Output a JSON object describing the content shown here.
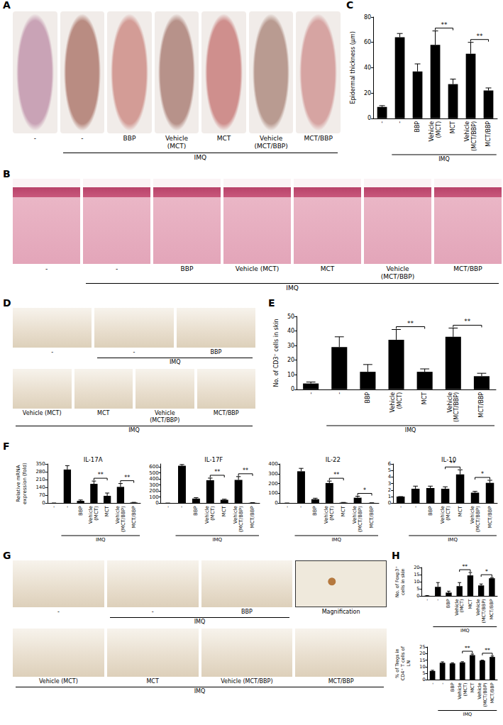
{
  "chart_data": [
    {
      "panel": "C",
      "type": "bar",
      "y_label": "Epidermal thickness (μm)",
      "categories": [
        "-",
        "-",
        "BBP",
        "Vehicle (MCT)",
        "MCT",
        "Vehicle (MCT/BBP)",
        "MCT/BBP"
      ],
      "values": [
        9,
        64,
        37,
        58,
        27,
        51,
        22
      ],
      "errors": [
        1,
        3,
        6,
        11,
        4,
        9,
        2
      ],
      "color": "#000000",
      "ylim": [
        0,
        80
      ],
      "yticks": [
        0,
        20,
        40,
        60,
        80
      ],
      "grid": false,
      "group": {
        "label": "IMQ",
        "start": 1,
        "end": 6
      },
      "significance": [
        {
          "from": 3,
          "to": 4,
          "label": "**"
        },
        {
          "from": 5,
          "to": 6,
          "label": "**"
        }
      ]
    },
    {
      "panel": "E",
      "type": "bar",
      "y_label": "No. of CD3⁺ cells in skin",
      "categories": [
        "-",
        "-",
        "BBP",
        "Vehicle (MCT)",
        "MCT",
        "Vehicle (MCT/BBP)",
        "MCT/BBP"
      ],
      "values": [
        4,
        29,
        12,
        34,
        12,
        36,
        9
      ],
      "errors": [
        1,
        7,
        5,
        7,
        2,
        6,
        2
      ],
      "color": "#000000",
      "ylim": [
        0,
        50
      ],
      "yticks": [
        0,
        10,
        20,
        30,
        40,
        50
      ],
      "grid": false,
      "group": {
        "label": "IMQ",
        "start": 1,
        "end": 6
      },
      "significance": [
        {
          "from": 3,
          "to": 4,
          "label": "**"
        },
        {
          "from": 5,
          "to": 6,
          "label": "**"
        }
      ]
    },
    {
      "panel": "F",
      "type": "bar",
      "title": "IL-17A",
      "y_label": "Relative mRNA expression (fold)",
      "categories": [
        "-",
        "-",
        "BBP",
        "Vehicle (MCT)",
        "MCT",
        "Vehicle (MCT/BBP)",
        "MCT/BBP"
      ],
      "values": [
        1,
        300,
        20,
        172,
        65,
        145,
        5
      ],
      "errors": [
        0,
        35,
        8,
        25,
        25,
        30,
        2
      ],
      "color": "#000000",
      "ylim": [
        0,
        350
      ],
      "yticks": [
        0,
        70,
        140,
        210,
        280,
        350
      ],
      "grid": false,
      "group": {
        "label": "IMQ",
        "start": 1,
        "end": 6
      },
      "significance": [
        {
          "from": 3,
          "to": 4,
          "label": "**"
        },
        {
          "from": 5,
          "to": 6,
          "label": "**"
        }
      ]
    },
    {
      "type": "bar",
      "title": "IL-17F",
      "categories": [
        "-",
        "-",
        "BBP",
        "Vehicle (MCT)",
        "MCT",
        "Vehicle (MCT/BBP)",
        "MCT/BBP"
      ],
      "values": [
        1,
        620,
        75,
        380,
        55,
        385,
        5
      ],
      "errors": [
        0,
        20,
        15,
        35,
        10,
        55,
        2
      ],
      "color": "#000000",
      "ylim": [
        0,
        650
      ],
      "yticks": [
        0,
        100,
        200,
        300,
        400,
        500,
        600
      ],
      "grid": false,
      "group": {
        "label": "IMQ",
        "start": 1,
        "end": 6
      },
      "significance": [
        {
          "from": 3,
          "to": 4,
          "label": "**"
        },
        {
          "from": 5,
          "to": 6,
          "label": "**"
        }
      ]
    },
    {
      "type": "bar",
      "title": "IL-22",
      "categories": [
        "-",
        "-",
        "BBP",
        "Vehicle (MCT)",
        "MCT",
        "Vehicle (MCT/BBP)",
        "MCT/BBP"
      ],
      "values": [
        1,
        325,
        40,
        205,
        5,
        55,
        2
      ],
      "errors": [
        0,
        30,
        10,
        20,
        2,
        15,
        1
      ],
      "color": "#000000",
      "ylim": [
        0,
        400
      ],
      "yticks": [
        0,
        100,
        200,
        300,
        400
      ],
      "grid": false,
      "group": {
        "label": "IMQ",
        "start": 1,
        "end": 6
      },
      "significance": [
        {
          "from": 3,
          "to": 4,
          "label": "**"
        },
        {
          "from": 5,
          "to": 6,
          "label": "*"
        }
      ]
    },
    {
      "type": "bar",
      "title": "IL-10",
      "categories": [
        "-",
        "-",
        "BBP",
        "Vehicle (MCT)",
        "MCT",
        "Vehicle (MCT/BBP)",
        "MCT/BBP"
      ],
      "values": [
        1,
        2.2,
        2.3,
        2.2,
        4.4,
        1.6,
        3.1
      ],
      "errors": [
        0,
        0.4,
        0.3,
        0.3,
        0.7,
        0.2,
        0.4
      ],
      "color": "#000000",
      "ylim": [
        0,
        6
      ],
      "yticks": [
        0,
        1,
        2,
        3,
        4,
        5,
        6
      ],
      "grid": false,
      "group": {
        "label": "IMQ",
        "start": 1,
        "end": 6
      },
      "significance": [
        {
          "from": 3,
          "to": 4,
          "label": "**"
        },
        {
          "from": 5,
          "to": 6,
          "label": "*"
        }
      ]
    },
    {
      "panel": "H",
      "type": "bar",
      "y_label": "No. of Foxp3⁺ cells in skin",
      "categories": [
        "-",
        "-",
        "BBP",
        "Vehicle (MCT)",
        "MCT",
        "Vehicle (MCT/BBP)",
        "MCT/BBP"
      ],
      "values": [
        0.3,
        6.5,
        2.5,
        7,
        14.5,
        7.5,
        12.5
      ],
      "errors": [
        0.1,
        3,
        1,
        2.5,
        2,
        1,
        0.5
      ],
      "color": "#000000",
      "ylim": [
        0,
        20
      ],
      "yticks": [
        0,
        5,
        10,
        15,
        20
      ],
      "grid": false,
      "group": {
        "label": "IMQ",
        "start": 1,
        "end": 6
      },
      "significance": [
        {
          "from": 3,
          "to": 4,
          "label": "**"
        },
        {
          "from": 5,
          "to": 6,
          "label": "*"
        }
      ]
    },
    {
      "type": "bar",
      "y_label": "% of Tregs in CD4⁺ T cells of LN",
      "categories": [
        "-",
        "-",
        "BBP",
        "Vehicle (MCT)",
        "MCT",
        "Vehicle (MCT/BBP)",
        "MCT/BBP"
      ],
      "values": [
        6.8,
        13,
        12.5,
        13.3,
        18.8,
        14.7,
        17.4
      ],
      "errors": [
        0.5,
        0.7,
        0.5,
        0.5,
        0.8,
        0.3,
        0.7
      ],
      "color": "#000000",
      "ylim": [
        0,
        25
      ],
      "yticks": [
        0,
        5,
        10,
        15,
        20,
        25
      ],
      "grid": false,
      "group": {
        "label": "IMQ",
        "start": 1,
        "end": 6
      },
      "significance": [
        {
          "from": 3,
          "to": 4,
          "label": "**"
        },
        {
          "from": 5,
          "to": 6,
          "label": "**"
        }
      ]
    }
  ],
  "image_panels": [
    {
      "panel": "A",
      "rows": [
        {
          "labels": [
            "-",
            "-",
            "BBP",
            "Vehicle (MCT)",
            "MCT",
            "Vehicle (MCT/BBP)",
            "MCT/BBP"
          ],
          "group": {
            "label": "IMQ",
            "start": 1,
            "end": 6
          }
        }
      ]
    },
    {
      "panel": "B",
      "rows": [
        {
          "labels": [
            "-",
            "-",
            "BBP",
            "Vehicle (MCT)",
            "MCT",
            "Vehicle (MCT/BBP)",
            "MCT/BBP"
          ],
          "group": {
            "label": "IMQ",
            "start": 1,
            "end": 6
          }
        }
      ]
    },
    {
      "panel": "D",
      "rows": [
        {
          "labels": [
            "-",
            "-",
            "BBP"
          ],
          "group": {
            "label": "IMQ",
            "start": 1,
            "end": 2
          }
        },
        {
          "labels": [
            "Vehicle (MCT)",
            "MCT",
            "Vehicle (MCT/BBP)",
            "MCT/BBP"
          ],
          "group": {
            "label": "IMQ",
            "start": 0,
            "end": 3
          }
        }
      ]
    },
    {
      "panel": "G",
      "rows": [
        {
          "labels": [
            "-",
            "-",
            "BBP",
            "Magnification"
          ],
          "group": {
            "label": "IMQ",
            "start": 1,
            "end": 2
          }
        },
        {
          "labels": [
            "Vehicle (MCT)",
            "MCT",
            "Vehicle (MCT/BBP)",
            "MCT/BBP"
          ],
          "group": {
            "label": "IMQ",
            "start": 0,
            "end": 3
          }
        }
      ]
    }
  ]
}
